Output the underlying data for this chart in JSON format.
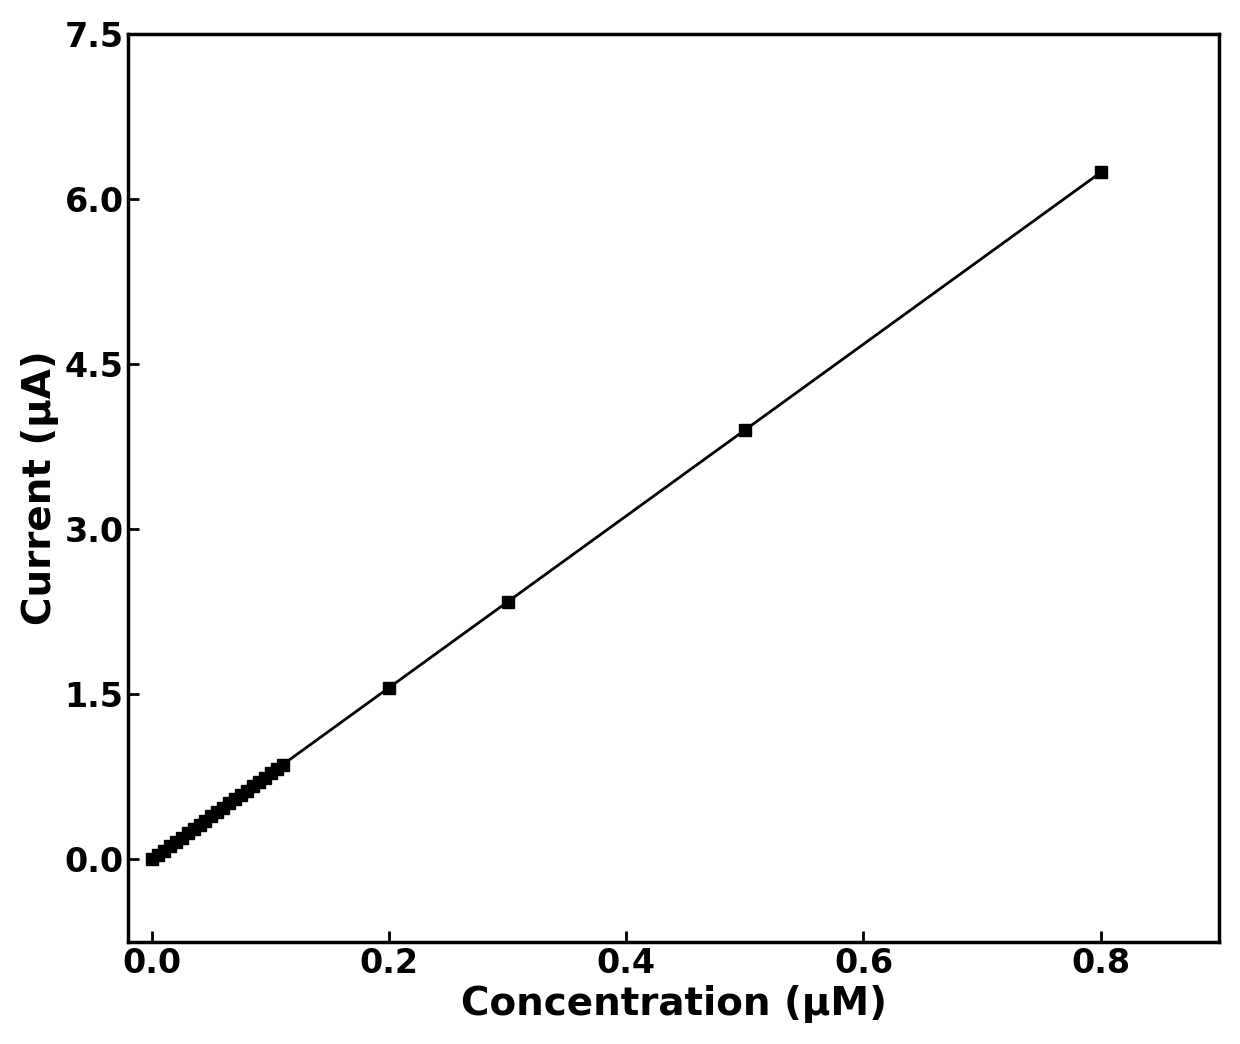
{
  "x_data": [
    0.0,
    0.005,
    0.01,
    0.015,
    0.02,
    0.025,
    0.03,
    0.035,
    0.04,
    0.045,
    0.05,
    0.055,
    0.06,
    0.065,
    0.07,
    0.075,
    0.08,
    0.085,
    0.09,
    0.095,
    0.1,
    0.105,
    0.11,
    0.2,
    0.3,
    0.5,
    0.8
  ],
  "y_data": [
    0.0,
    0.039,
    0.078,
    0.117,
    0.156,
    0.195,
    0.234,
    0.273,
    0.312,
    0.351,
    0.39,
    0.429,
    0.468,
    0.507,
    0.546,
    0.585,
    0.624,
    0.663,
    0.702,
    0.741,
    0.78,
    0.819,
    0.858,
    1.56,
    2.34,
    3.9,
    6.24
  ],
  "xlabel": "Concentration (μM)",
  "ylabel": "Current (μA)",
  "xlim": [
    -0.02,
    0.9
  ],
  "ylim": [
    -0.75,
    7.5
  ],
  "xticks": [
    0.0,
    0.2,
    0.4,
    0.6,
    0.8
  ],
  "yticks": [
    0.0,
    1.5,
    3.0,
    4.5,
    6.0,
    7.5
  ],
  "marker": "s",
  "markersize": 8,
  "linewidth": 2.0,
  "color": "#000000",
  "background_color": "#ffffff",
  "xlabel_fontsize": 28,
  "ylabel_fontsize": 28,
  "tick_fontsize": 24,
  "spine_linewidth": 2.5
}
